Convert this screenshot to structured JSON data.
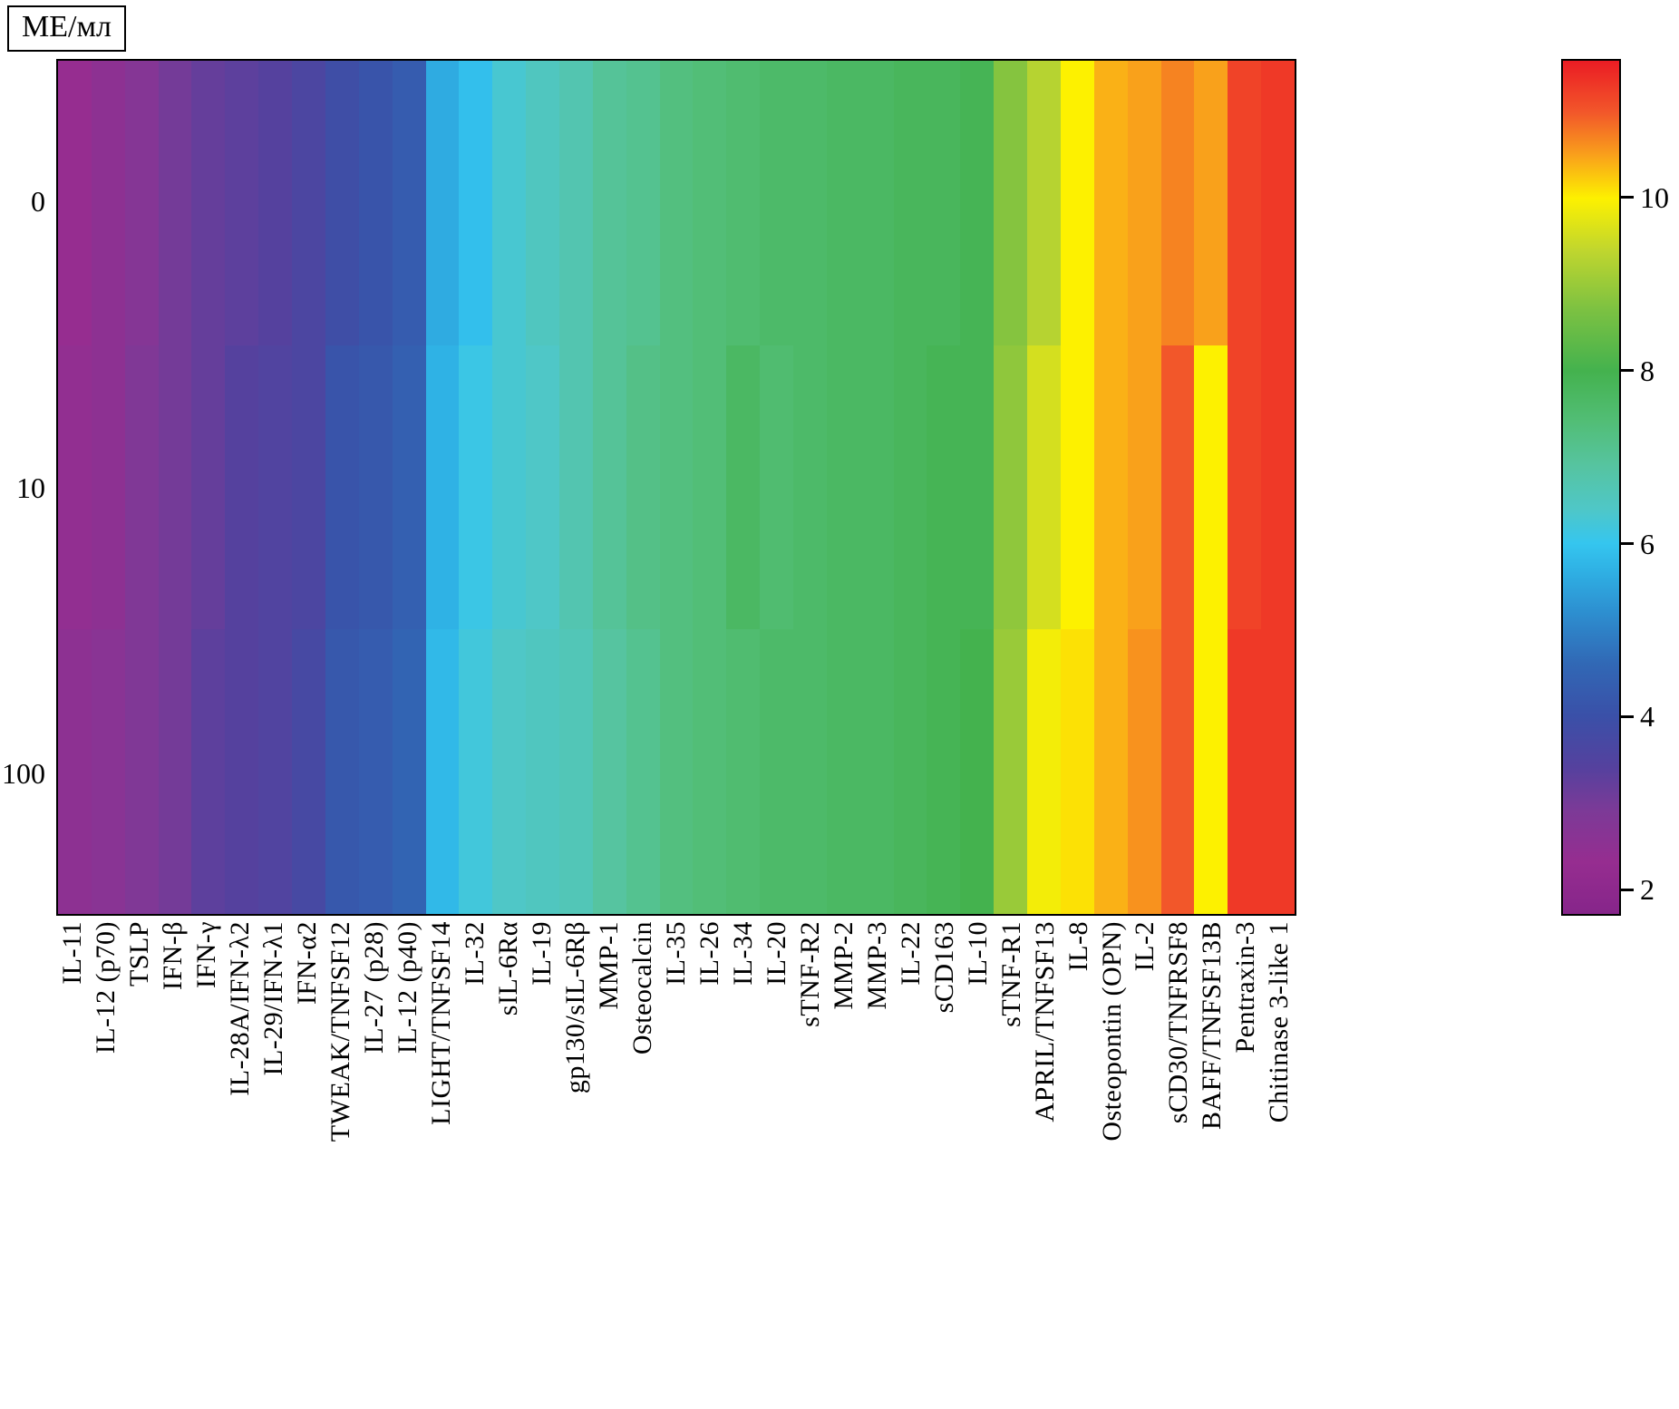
{
  "units_label": "МЕ/мл",
  "chart_data": {
    "type": "heatmap",
    "units_label": "МЕ/мл",
    "categories": [
      "IL-11",
      "IL-12 (p70)",
      "TSLP",
      "IFN-β",
      "IFN-γ",
      "IL-28A/IFN-λ2",
      "IL-29/IFN-λ1",
      "IFN-α2",
      "TWEAK/TNFSF12",
      "IL-27 (p28)",
      "IL-12 (p40)",
      "LIGHT/TNFSF14",
      "IL-32",
      "sIL-6Rα",
      "IL-19",
      "gp130/sIL-6Rβ",
      "MMP-1",
      "Osteocalcin",
      "IL-35",
      "IL-26",
      "IL-34",
      "IL-20",
      "sTNF-R2",
      "MMP-2",
      "MMP-3",
      "IL-22",
      "sCD163",
      "IL-10",
      "sTNF-R1",
      "APRIL/TNFSF13",
      "IL-8",
      "Osteopontin (OPN)",
      "IL-2",
      "sCD30/TNFRSF8",
      "BAFF/TNFSF13B",
      "Pentraxin-3",
      "Chitinase 3-like 1"
    ],
    "rows": [
      {
        "label": "0",
        "values": [
          2.3,
          2.5,
          2.7,
          3.0,
          3.2,
          3.3,
          3.4,
          3.6,
          3.9,
          4.1,
          4.3,
          5.6,
          5.9,
          6.3,
          6.5,
          6.7,
          7.0,
          7.1,
          7.3,
          7.4,
          7.5,
          7.6,
          7.6,
          7.7,
          7.7,
          7.8,
          7.8,
          7.9,
          8.8,
          9.3,
          10.0,
          10.4,
          10.5,
          10.7,
          10.5,
          11.2,
          11.3
        ]
      },
      {
        "label": "10",
        "values": [
          2.4,
          2.5,
          2.8,
          3.0,
          3.2,
          3.4,
          3.5,
          3.6,
          4.1,
          4.2,
          4.4,
          5.7,
          6.1,
          6.3,
          6.4,
          6.7,
          7.0,
          7.2,
          7.3,
          7.4,
          7.7,
          7.5,
          7.6,
          7.7,
          7.7,
          7.8,
          7.9,
          7.9,
          8.9,
          9.6,
          10.0,
          10.4,
          10.5,
          11.0,
          10.0,
          11.2,
          11.3
        ]
      },
      {
        "label": "100",
        "values": [
          2.5,
          2.6,
          2.8,
          3.0,
          3.3,
          3.4,
          3.5,
          3.7,
          4.2,
          4.3,
          4.5,
          5.8,
          6.2,
          6.4,
          6.5,
          6.6,
          6.9,
          7.1,
          7.3,
          7.4,
          7.5,
          7.6,
          7.6,
          7.7,
          7.7,
          7.8,
          7.9,
          8.0,
          9.0,
          9.9,
          10.1,
          10.4,
          10.6,
          11.0,
          10.0,
          11.3,
          11.3
        ]
      }
    ],
    "y_tick_labels": [
      "0",
      "10",
      "100"
    ],
    "colorbar": {
      "vmin": 1.7,
      "vmax": 11.6,
      "ticks": [
        10,
        8,
        6,
        4,
        2
      ]
    },
    "colormap": [
      [
        1.7,
        "#86258A"
      ],
      [
        2.3,
        "#962D90"
      ],
      [
        2.9,
        "#7C3A97"
      ],
      [
        3.4,
        "#55419E"
      ],
      [
        4.0,
        "#3A50A8"
      ],
      [
        4.6,
        "#3168B5"
      ],
      [
        5.2,
        "#2D8FD0"
      ],
      [
        5.7,
        "#2FB2E5"
      ],
      [
        6.0,
        "#35C6EF"
      ],
      [
        6.4,
        "#4FC7C7"
      ],
      [
        6.9,
        "#56C4A0"
      ],
      [
        7.4,
        "#52BE77"
      ],
      [
        8.0,
        "#44B24E"
      ],
      [
        8.7,
        "#7BC142"
      ],
      [
        9.4,
        "#C0D62E"
      ],
      [
        10.0,
        "#FDF100"
      ],
      [
        10.5,
        "#F9A11B"
      ],
      [
        11.0,
        "#F2572A"
      ],
      [
        11.6,
        "#EB1C24"
      ]
    ],
    "grid": false,
    "legend_position": "right-colorbar"
  }
}
